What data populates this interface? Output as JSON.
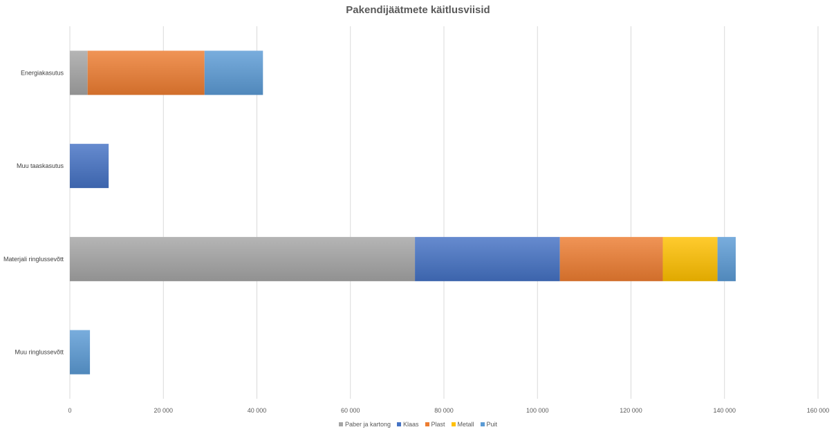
{
  "chart_data": {
    "type": "bar",
    "orientation": "horizontal",
    "stacked": true,
    "title": "Pakendijäätmete käitlusviisid",
    "xlabel": "",
    "ylabel": "",
    "categories": [
      "Energiakasutus",
      "Muu taaskasutus",
      "Materjali ringlussevõtt",
      "Muu ringlussevõtt"
    ],
    "series": [
      {
        "name": "Paber ja kartong",
        "color": "#a5a5a5",
        "values": [
          3800,
          0,
          73800,
          0
        ]
      },
      {
        "name": "Klaas",
        "color": "#4472c4",
        "values": [
          0,
          8300,
          31000,
          0
        ]
      },
      {
        "name": "Plast",
        "color": "#ed7d31",
        "values": [
          25000,
          0,
          22000,
          0
        ]
      },
      {
        "name": "Metall",
        "color": "#ffc000",
        "values": [
          0,
          0,
          11700,
          0
        ]
      },
      {
        "name": "Puit",
        "color": "#5b9bd5",
        "values": [
          12500,
          0,
          3900,
          4300
        ]
      }
    ],
    "xlim": [
      0,
      160000
    ],
    "xticks": [
      0,
      20000,
      40000,
      60000,
      80000,
      100000,
      120000,
      140000,
      160000
    ],
    "xtick_labels": [
      "0",
      "20 000",
      "40 000",
      "60 000",
      "80 000",
      "100 000",
      "120 000",
      "140 000",
      "160 000"
    ],
    "grid": true,
    "legend_position": "bottom"
  }
}
